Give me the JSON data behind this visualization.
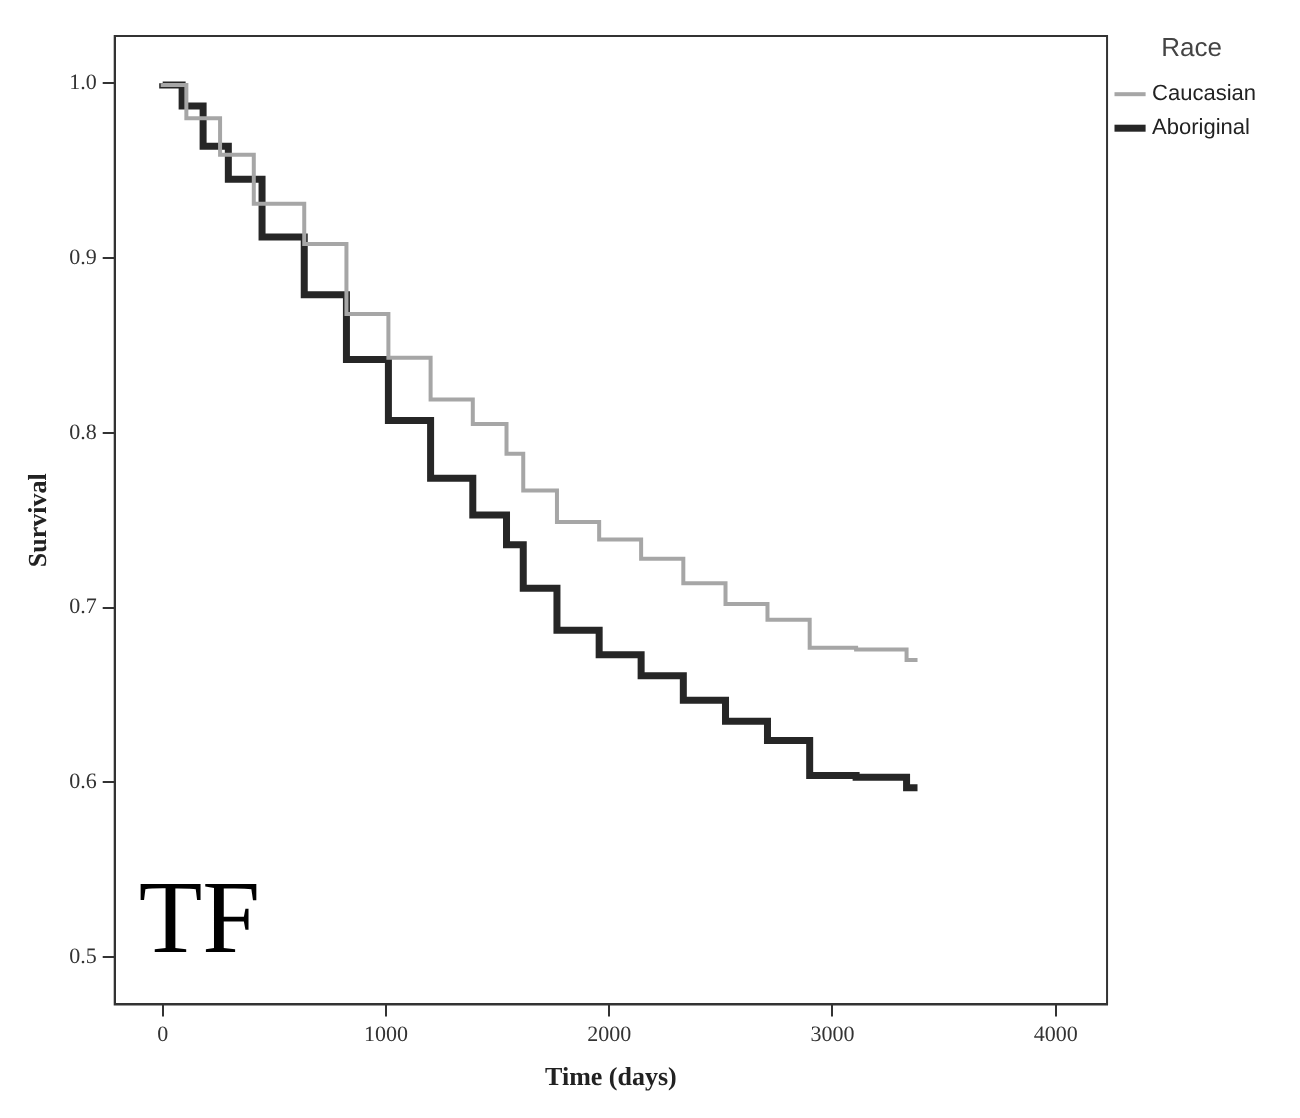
{
  "chart_data": {
    "type": "step",
    "xlabel": "Time (days)",
    "ylabel": "Survival",
    "legend_title": "Race",
    "legend": "top right",
    "grid": false,
    "marker": "none",
    "xlim": [
      -215,
      4230
    ],
    "xticks": [
      0,
      1000,
      2000,
      3000,
      4000
    ],
    "ylim": [
      0.473,
      1.027
    ],
    "yticks": [
      {
        "value": 0.5,
        "label": "0.5"
      },
      {
        "value": 0.6,
        "label": "0.6"
      },
      {
        "value": 0.7,
        "label": "0.7"
      },
      {
        "value": 0.8,
        "label": "0.8"
      },
      {
        "value": 0.9,
        "label": "0.9"
      },
      {
        "value": 1.0,
        "label": "1.0"
      }
    ],
    "annotations": [
      "TF"
    ],
    "series": [
      {
        "name": "Caucasian",
        "color": "#a6a6a6",
        "x": [
          0,
          106,
          257,
          408,
          634,
          823,
          1011,
          1200,
          1389,
          1540,
          1615,
          1766,
          1955,
          2143,
          2332,
          2521,
          2709,
          2898,
          3106,
          3332,
          3381
        ],
        "values": [
          1.0,
          0.999,
          0.98,
          0.959,
          0.931,
          0.908,
          0.868,
          0.843,
          0.819,
          0.805,
          0.788,
          0.767,
          0.749,
          0.739,
          0.728,
          0.714,
          0.702,
          0.693,
          0.677,
          0.676,
          0.67
        ]
      },
      {
        "name": "Aboriginal",
        "color": "#262626",
        "x": [
          0,
          87,
          181,
          294,
          445,
          634,
          823,
          1011,
          1200,
          1389,
          1540,
          1615,
          1766,
          1955,
          2143,
          2332,
          2521,
          2709,
          2898,
          3106,
          3332,
          3381
        ],
        "values": [
          1.0,
          0.999,
          0.987,
          0.964,
          0.945,
          0.912,
          0.879,
          0.842,
          0.807,
          0.774,
          0.753,
          0.736,
          0.711,
          0.687,
          0.673,
          0.661,
          0.647,
          0.635,
          0.624,
          0.604,
          0.603,
          0.597
        ]
      }
    ]
  }
}
